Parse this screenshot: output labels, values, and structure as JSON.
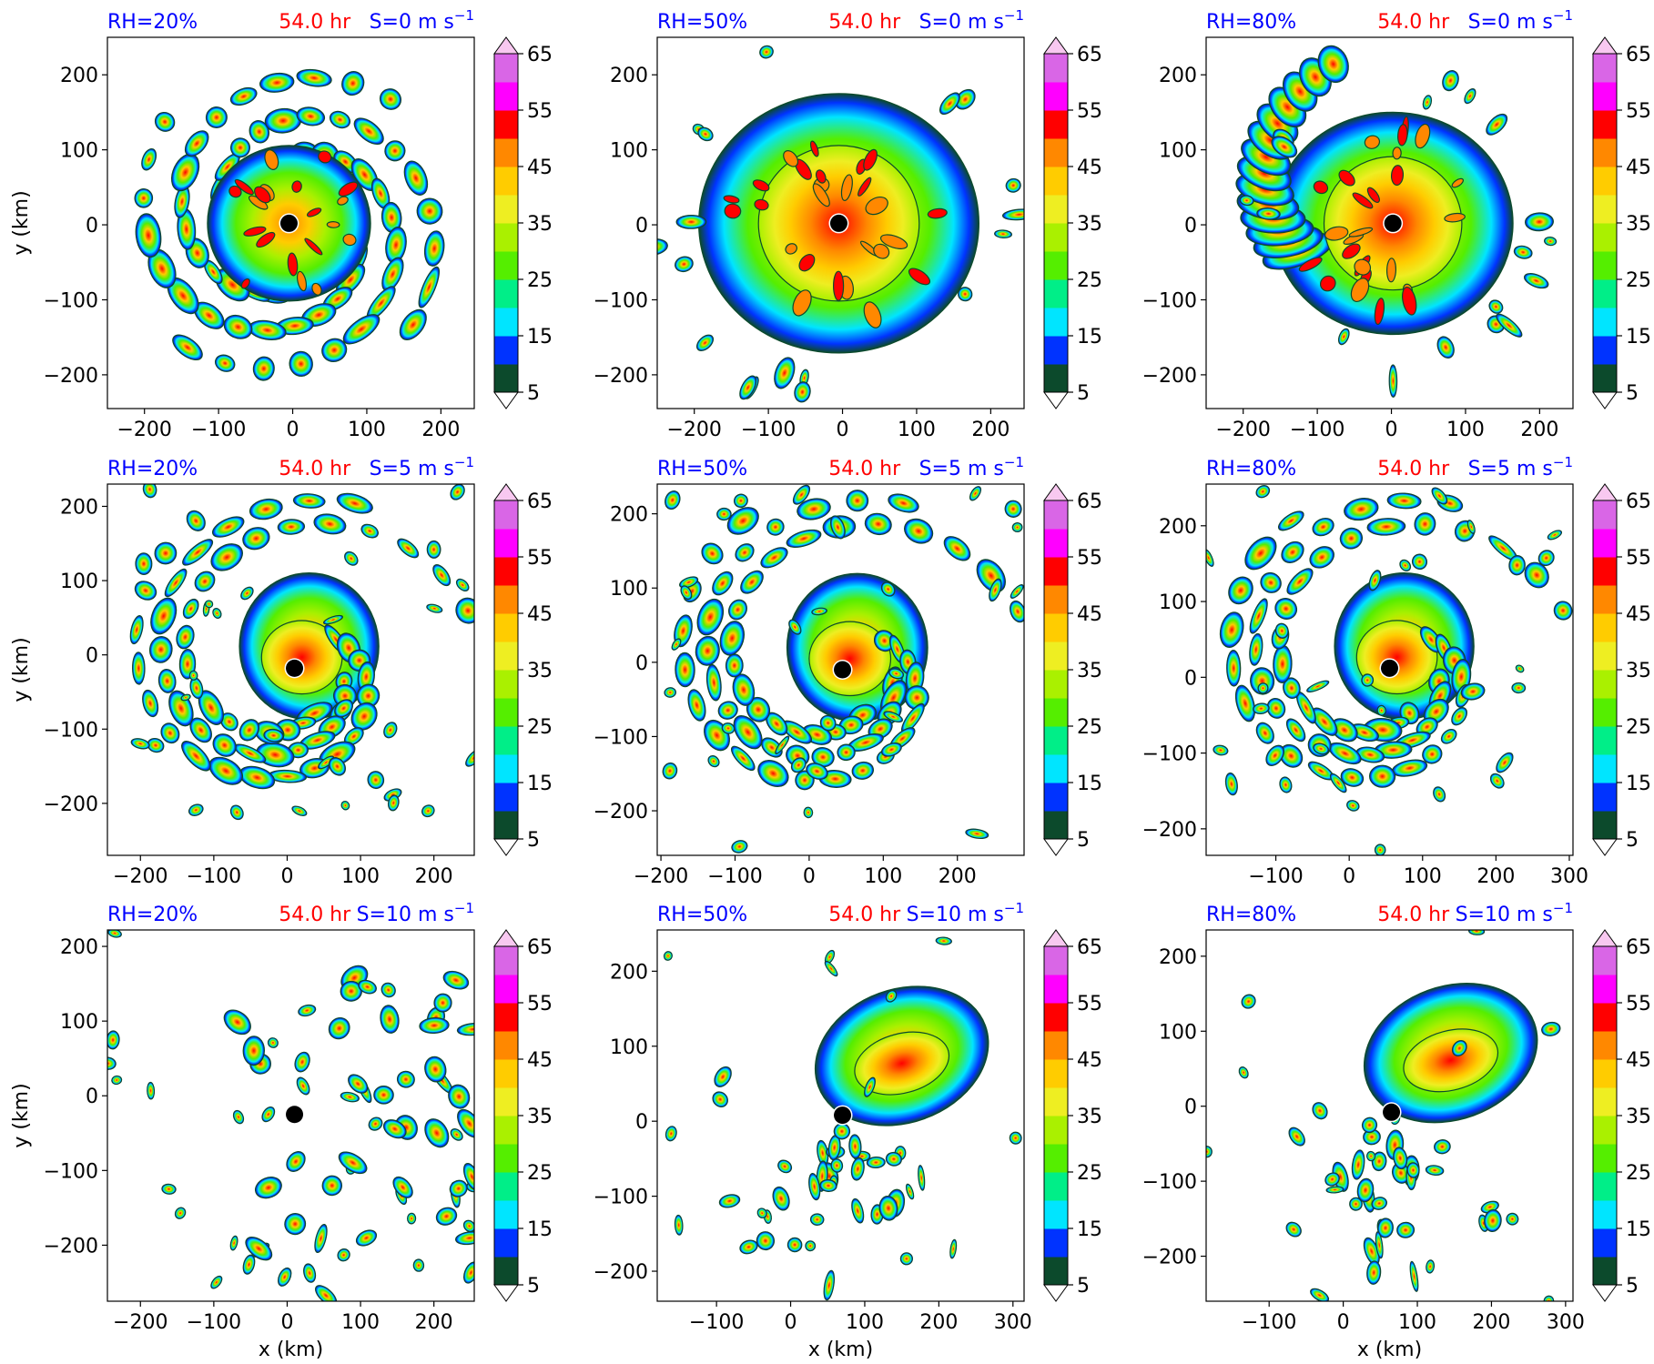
{
  "colors": {
    "levels": [
      "#0c4a2c",
      "#0033ff",
      "#00e5ff",
      "#00ee88",
      "#55ee00",
      "#aaf000",
      "#eeee22",
      "#ffcc00",
      "#ff8800",
      "#ff0000",
      "#ff00ff",
      "#d966e6",
      "#f8c8f0"
    ],
    "annotation_blue": "#0000ff",
    "annotation_red": "#ff0000",
    "eye_marker": "#000000"
  },
  "colorbar_ticks": [
    "5",
    "15",
    "25",
    "35",
    "45",
    "55",
    "65"
  ],
  "chart_data": [
    {
      "type": "contour",
      "row": 0,
      "col": 0,
      "rh_label": "RH=20%",
      "time_label": "54.0 hr",
      "shear_label": "S=0 m s",
      "shear_exp": "−1",
      "xlim": [
        -250,
        245
      ],
      "ylim": [
        -245,
        250
      ],
      "xticks": [
        -200,
        -100,
        0,
        100,
        200
      ],
      "yticks": [
        -200,
        -100,
        0,
        100,
        200
      ],
      "ylabel": "y (km)",
      "xlabel": "",
      "center": [
        -5,
        2
      ],
      "pattern": "spiral-bands",
      "levels": [
        5,
        10,
        15,
        20,
        25,
        30,
        35,
        40,
        45,
        50,
        55,
        60,
        65,
        70
      ]
    },
    {
      "type": "contour",
      "row": 0,
      "col": 1,
      "rh_label": "RH=50%",
      "time_label": "54.0 hr",
      "shear_label": "S=0 m s",
      "shear_exp": "−1",
      "xlim": [
        -250,
        245
      ],
      "ylim": [
        -245,
        250
      ],
      "xticks": [
        -200,
        -100,
        0,
        100,
        200
      ],
      "yticks": [
        -200,
        -100,
        0,
        100,
        200
      ],
      "ylabel": "",
      "xlabel": "",
      "center": [
        -5,
        2
      ],
      "pattern": "compact",
      "levels": [
        5,
        10,
        15,
        20,
        25,
        30,
        35,
        40,
        45,
        50,
        55,
        60,
        65,
        70
      ]
    },
    {
      "type": "contour",
      "row": 0,
      "col": 2,
      "rh_label": "RH=80%",
      "time_label": "54.0 hr",
      "shear_label": "S=0 m s",
      "shear_exp": "−1",
      "xlim": [
        -250,
        245
      ],
      "ylim": [
        -245,
        250
      ],
      "xticks": [
        -200,
        -100,
        0,
        100,
        200
      ],
      "yticks": [
        -200,
        -100,
        0,
        100,
        200
      ],
      "ylabel": "",
      "xlabel": "",
      "center": [
        2,
        2
      ],
      "pattern": "intense",
      "levels": [
        5,
        10,
        15,
        20,
        25,
        30,
        35,
        40,
        45,
        50,
        55,
        60,
        65,
        70
      ]
    },
    {
      "type": "contour",
      "row": 1,
      "col": 0,
      "rh_label": "RH=20%",
      "time_label": "54.0 hr",
      "shear_label": "S=5 m s",
      "shear_exp": "−1",
      "xlim": [
        -245,
        255
      ],
      "ylim": [
        -270,
        230
      ],
      "xticks": [
        -200,
        -100,
        0,
        100,
        200
      ],
      "yticks": [
        -200,
        -100,
        0,
        100,
        200
      ],
      "ylabel": "y (km)",
      "xlabel": "",
      "center": [
        10,
        -18
      ],
      "pattern": "sheared-spiral",
      "levels": [
        5,
        10,
        15,
        20,
        25,
        30,
        35,
        40,
        45,
        50,
        55,
        60,
        65,
        70
      ]
    },
    {
      "type": "contour",
      "row": 1,
      "col": 1,
      "rh_label": "RH=50%",
      "time_label": "54.0 hr",
      "shear_label": "S=5 m s",
      "shear_exp": "−1",
      "xlim": [
        -205,
        290
      ],
      "ylim": [
        -260,
        240
      ],
      "xticks": [
        -200,
        -100,
        0,
        100,
        200
      ],
      "yticks": [
        -200,
        -100,
        0,
        100,
        200
      ],
      "ylabel": "",
      "xlabel": "",
      "center": [
        45,
        -10
      ],
      "pattern": "sheared-spiral",
      "levels": [
        5,
        10,
        15,
        20,
        25,
        30,
        35,
        40,
        45,
        50,
        55,
        60,
        65,
        70
      ]
    },
    {
      "type": "contour",
      "row": 1,
      "col": 2,
      "rh_label": "RH=80%",
      "time_label": "54.0 hr",
      "shear_label": "S=5 m s",
      "shear_exp": "−1",
      "xlim": [
        -195,
        305
      ],
      "ylim": [
        -235,
        255
      ],
      "xticks": [
        -100,
        0,
        100,
        200,
        300
      ],
      "yticks": [
        -200,
        -100,
        0,
        100,
        200
      ],
      "ylabel": "",
      "xlabel": "",
      "center": [
        55,
        12
      ],
      "pattern": "sheared-spiral",
      "levels": [
        5,
        10,
        15,
        20,
        25,
        30,
        35,
        40,
        45,
        50,
        55,
        60,
        65,
        70
      ]
    },
    {
      "type": "contour",
      "row": 2,
      "col": 0,
      "rh_label": "RH=20%",
      "time_label": "54.0 hr",
      "shear_label": "S=10 m s",
      "shear_exp": "−1",
      "xlim": [
        -245,
        255
      ],
      "ylim": [
        -275,
        222
      ],
      "xticks": [
        -200,
        -100,
        0,
        100,
        200
      ],
      "yticks": [
        -200,
        -100,
        0,
        100,
        200
      ],
      "ylabel": "y (km)",
      "xlabel": "x (km)",
      "center": [
        10,
        -25
      ],
      "pattern": "scattered",
      "levels": [
        5,
        10,
        15,
        20,
        25,
        30,
        35,
        40,
        45,
        50,
        55,
        60,
        65,
        70
      ]
    },
    {
      "type": "contour",
      "row": 2,
      "col": 1,
      "rh_label": "RH=50%",
      "time_label": "54.0 hr",
      "shear_label": "S=10 m s",
      "shear_exp": "−1",
      "xlim": [
        -180,
        315
      ],
      "ylim": [
        -240,
        255
      ],
      "xticks": [
        -100,
        0,
        100,
        200,
        300
      ],
      "yticks": [
        -200,
        -100,
        0,
        100,
        200
      ],
      "ylabel": "",
      "xlabel": "x (km)",
      "center": [
        70,
        8
      ],
      "pattern": "downshear",
      "levels": [
        5,
        10,
        15,
        20,
        25,
        30,
        35,
        40,
        45,
        50,
        55,
        60,
        65,
        70
      ]
    },
    {
      "type": "contour",
      "row": 2,
      "col": 2,
      "rh_label": "RH=80%",
      "time_label": "54.0 hr",
      "shear_label": "S=10 m s",
      "shear_exp": "−1",
      "xlim": [
        -185,
        310
      ],
      "ylim": [
        -260,
        235
      ],
      "xticks": [
        -100,
        0,
        100,
        200,
        300
      ],
      "yticks": [
        -200,
        -100,
        0,
        100,
        200
      ],
      "ylabel": "",
      "xlabel": "x (km)",
      "center": [
        65,
        -8
      ],
      "pattern": "downshear",
      "levels": [
        5,
        10,
        15,
        20,
        25,
        30,
        35,
        40,
        45,
        50,
        55,
        60,
        65,
        70
      ]
    }
  ]
}
